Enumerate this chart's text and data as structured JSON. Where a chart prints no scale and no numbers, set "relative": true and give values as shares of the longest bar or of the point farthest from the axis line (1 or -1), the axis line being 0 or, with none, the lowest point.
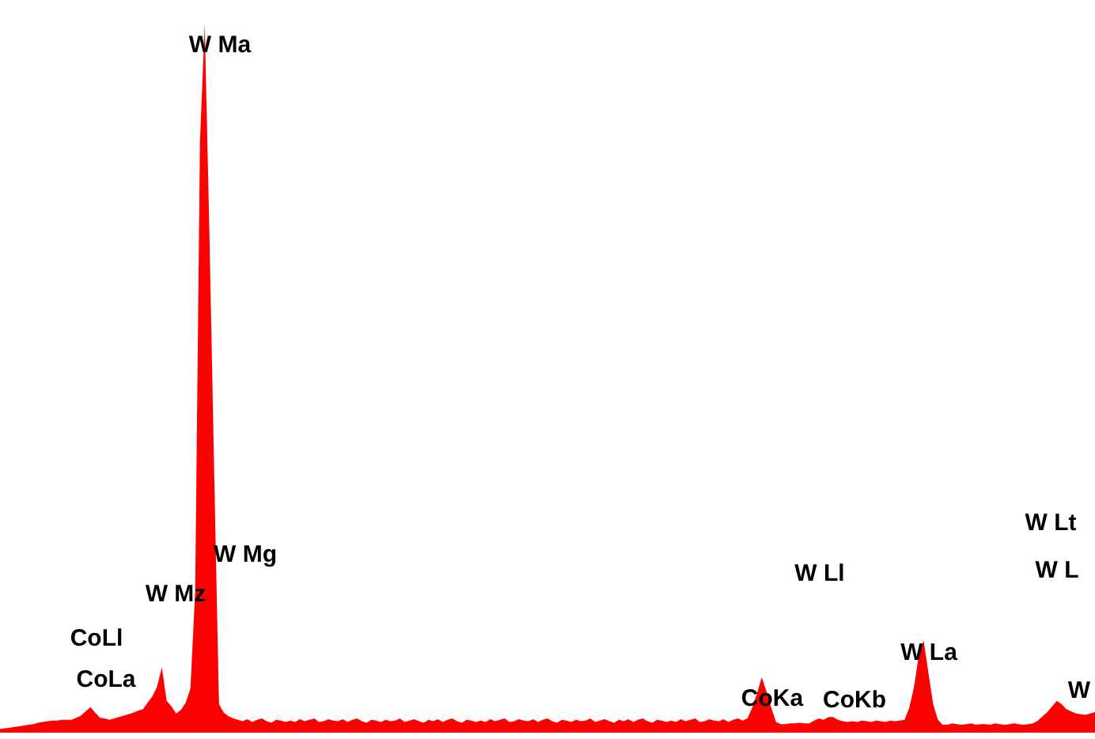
{
  "chart_data": {
    "type": "area",
    "relative": true,
    "color": "#ff0000",
    "categories": [
      null,
      null,
      null,
      null,
      null,
      null,
      null,
      null,
      null,
      null,
      null,
      null,
      null,
      null,
      null,
      null,
      null,
      null,
      null,
      null,
      null,
      null,
      null,
      null,
      null,
      null,
      null,
      null,
      null,
      null,
      null,
      null,
      null,
      null,
      null,
      null,
      null,
      null,
      null,
      null,
      null,
      null,
      null,
      null,
      null,
      null,
      null,
      null,
      null,
      null,
      null,
      null,
      null,
      null,
      null,
      null,
      null,
      null,
      null,
      null,
      null,
      null,
      null,
      null,
      null,
      null,
      null,
      null,
      null,
      null,
      null,
      null,
      null,
      null,
      null,
      null,
      null,
      null,
      null,
      null,
      null,
      null,
      null,
      null,
      null,
      null,
      null,
      null,
      null,
      null,
      null,
      null,
      null,
      null,
      null,
      null,
      null,
      null,
      null,
      null,
      null,
      null,
      null,
      null,
      null,
      null,
      null,
      null,
      null,
      null,
      null,
      null,
      null,
      null,
      null,
      null,
      null,
      null,
      null,
      null,
      null,
      null,
      null,
      null,
      null,
      null,
      null,
      null,
      null,
      null,
      null,
      null,
      null,
      null,
      null,
      null,
      null,
      null,
      null,
      null,
      null,
      null,
      null,
      null,
      null,
      null,
      null,
      null,
      null,
      null,
      null,
      null,
      null,
      null,
      null,
      null,
      null,
      null,
      null,
      null,
      null,
      null,
      null,
      null,
      null,
      null,
      null,
      null,
      null,
      null,
      null,
      null,
      null,
      null,
      null,
      null,
      null,
      null,
      null,
      null,
      null,
      null,
      null,
      null,
      null,
      null,
      null,
      null,
      null,
      null,
      null,
      null,
      null,
      null,
      null,
      null,
      null,
      null,
      null,
      null,
      null,
      null,
      null,
      null,
      null,
      null,
      null,
      null,
      null,
      null,
      null,
      null,
      null,
      null,
      null,
      null,
      null,
      null,
      null,
      null,
      null,
      null,
      null,
      null,
      null,
      null,
      null,
      null,
      null,
      null,
      null
    ],
    "values": [
      0.005,
      0.006,
      0.007,
      0.008,
      0.009,
      0.01,
      0.011,
      0.012,
      0.014,
      0.015,
      0.016,
      0.017,
      0.017,
      0.018,
      0.018,
      0.018,
      0.021,
      0.024,
      0.03,
      0.036,
      0.028,
      0.021,
      0.02,
      0.018,
      0.02,
      0.022,
      0.024,
      0.026,
      0.028,
      0.031,
      0.033,
      0.042,
      0.051,
      0.065,
      0.092,
      0.045,
      0.037,
      0.027,
      0.032,
      0.042,
      0.062,
      0.2,
      0.833,
      1,
      0.7,
      0.364,
      0.04,
      0.028,
      0.023,
      0.02,
      0.018,
      0.016,
      0.019,
      0.015,
      0.018,
      0.02,
      0.016,
      0.014,
      0.018,
      0.017,
      0.015,
      0.017,
      0.015,
      0.019,
      0.016,
      0.018,
      0.02,
      0.015,
      0.016,
      0.019,
      0.017,
      0.016,
      0.019,
      0.015,
      0.018,
      0.02,
      0.016,
      0.014,
      0.018,
      0.017,
      0.015,
      0.018,
      0.016,
      0.017,
      0.02,
      0.015,
      0.017,
      0.019,
      0.016,
      0.014,
      0.018,
      0.016,
      0.019,
      0.015,
      0.018,
      0.02,
      0.016,
      0.014,
      0.018,
      0.017,
      0.015,
      0.017,
      0.015,
      0.019,
      0.016,
      0.018,
      0.02,
      0.015,
      0.016,
      0.019,
      0.017,
      0.016,
      0.019,
      0.015,
      0.018,
      0.02,
      0.016,
      0.014,
      0.018,
      0.017,
      0.015,
      0.018,
      0.016,
      0.017,
      0.02,
      0.015,
      0.017,
      0.019,
      0.016,
      0.014,
      0.018,
      0.016,
      0.019,
      0.015,
      0.018,
      0.02,
      0.016,
      0.014,
      0.018,
      0.017,
      0.015,
      0.017,
      0.015,
      0.019,
      0.016,
      0.018,
      0.02,
      0.015,
      0.016,
      0.019,
      0.017,
      0.016,
      0.019,
      0.015,
      0.018,
      0.02,
      0.017,
      0.02,
      0.035,
      0.055,
      0.078,
      0.058,
      0.035,
      0.015,
      0.012,
      0.012,
      0.013,
      0.013,
      0.014,
      0.013,
      0.013,
      0.017,
      0.02,
      0.018,
      0.022,
      0.022,
      0.018,
      0.016,
      0.015,
      0.016,
      0.015,
      0.017,
      0.016,
      0.015,
      0.017,
      0.016,
      0.015,
      0.017,
      0.016,
      0.017,
      0.018,
      0.035,
      0.065,
      0.11,
      0.13,
      0.085,
      0.04,
      0.018,
      0.011,
      0.011,
      0.013,
      0.012,
      0.011,
      0.012,
      0.013,
      0.011,
      0.012,
      0.012,
      0.011,
      0.013,
      0.012,
      0.011,
      0.012,
      0.013,
      0.012,
      0.011,
      0.012,
      0.013,
      0.017,
      0.023,
      0.029,
      0.037,
      0.045,
      0.04,
      0.033,
      0.03,
      0.027,
      0.026,
      0.025,
      0.027,
      0.029
    ],
    "annotations": [
      "W Ma",
      "W Mg",
      "W Mz",
      "CoLl",
      "CoLa",
      "CoKa",
      "CoKb",
      "W La",
      "W Ll",
      "W Lt",
      "W L",
      "W"
    ]
  }
}
